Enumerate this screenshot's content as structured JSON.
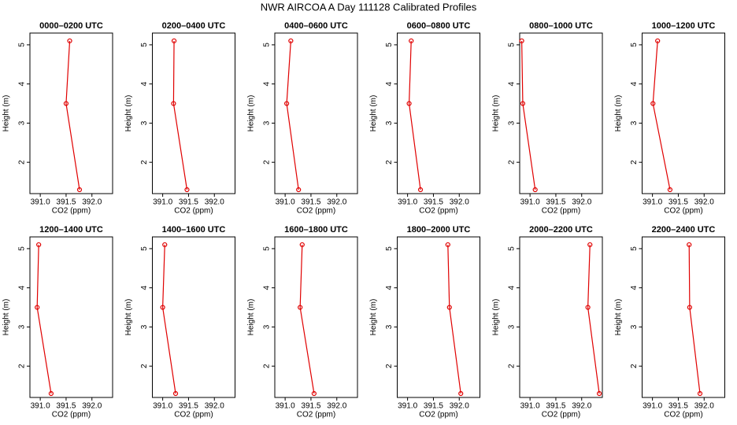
{
  "title": "NWR AIRCOA A  Day 111128  Calibrated Profiles",
  "chart_data": [
    {
      "type": "line",
      "title": "0000–0200 UTC",
      "xlabel": "CO2 (ppm)",
      "ylabel": "Height (m)",
      "color": "#e00000",
      "x": [
        391.57,
        391.5,
        391.76
      ],
      "values": [
        5.1,
        3.5,
        1.3
      ],
      "xlim": [
        390.8,
        392.4
      ],
      "ylim": [
        1.2,
        5.3
      ],
      "xticks": [
        {
          "value": 391,
          "label": "391.0"
        },
        391.5,
        {
          "value": 392,
          "label": "392.0"
        }
      ],
      "yticks": [
        2,
        3,
        4,
        5
      ]
    },
    {
      "type": "line",
      "title": "0200–0400 UTC",
      "xlabel": "CO2 (ppm)",
      "ylabel": "Height (m)",
      "color": "#e00000",
      "x": [
        391.22,
        391.21,
        391.47
      ],
      "values": [
        5.1,
        3.5,
        1.3
      ],
      "xlim": [
        390.8,
        392.4
      ],
      "ylim": [
        1.2,
        5.3
      ],
      "xticks": [
        {
          "value": 391,
          "label": "391.0"
        },
        391.5,
        {
          "value": 392,
          "label": "392.0"
        }
      ],
      "yticks": [
        2,
        3,
        4,
        5
      ]
    },
    {
      "type": "line",
      "title": "0400–0600 UTC",
      "xlabel": "CO2 (ppm)",
      "ylabel": "Height (m)",
      "color": "#e00000",
      "x": [
        391.11,
        391.03,
        391.26
      ],
      "values": [
        5.1,
        3.5,
        1.3
      ],
      "xlim": [
        390.8,
        392.4
      ],
      "ylim": [
        1.2,
        5.3
      ],
      "xticks": [
        {
          "value": 391,
          "label": "391.0"
        },
        391.5,
        {
          "value": 392,
          "label": "392.0"
        }
      ],
      "yticks": [
        2,
        3,
        4,
        5
      ]
    },
    {
      "type": "line",
      "title": "0600–0800 UTC",
      "xlabel": "CO2 (ppm)",
      "ylabel": "Height (m)",
      "color": "#e00000",
      "x": [
        391.07,
        391.03,
        391.25
      ],
      "values": [
        5.1,
        3.5,
        1.3
      ],
      "xlim": [
        390.8,
        392.4
      ],
      "ylim": [
        1.2,
        5.3
      ],
      "xticks": [
        {
          "value": 391,
          "label": "391.0"
        },
        391.5,
        {
          "value": 392,
          "label": "392.0"
        }
      ],
      "yticks": [
        2,
        3,
        4,
        5
      ]
    },
    {
      "type": "line",
      "title": "0800–1000 UTC",
      "xlabel": "CO2 (ppm)",
      "ylabel": "Height (m)",
      "color": "#e00000",
      "x": [
        390.84,
        390.86,
        391.1
      ],
      "values": [
        5.1,
        3.5,
        1.3
      ],
      "xlim": [
        390.8,
        392.4
      ],
      "ylim": [
        1.2,
        5.3
      ],
      "xticks": [
        {
          "value": 391,
          "label": "391.0"
        },
        391.5,
        {
          "value": 392,
          "label": "392.0"
        }
      ],
      "yticks": [
        2,
        3,
        4,
        5
      ]
    },
    {
      "type": "line",
      "title": "1000–1200 UTC",
      "xlabel": "CO2 (ppm)",
      "ylabel": "Height (m)",
      "color": "#e00000",
      "x": [
        391.1,
        391.01,
        391.34
      ],
      "values": [
        5.1,
        3.5,
        1.3
      ],
      "xlim": [
        390.8,
        392.4
      ],
      "ylim": [
        1.2,
        5.3
      ],
      "xticks": [
        {
          "value": 391,
          "label": "391.0"
        },
        391.5,
        {
          "value": 392,
          "label": "392.0"
        }
      ],
      "yticks": [
        2,
        3,
        4,
        5
      ]
    },
    {
      "type": "line",
      "title": "1200–1400 UTC",
      "xlabel": "CO2 (ppm)",
      "ylabel": "Height (m)",
      "color": "#e00000",
      "x": [
        390.97,
        390.94,
        391.21
      ],
      "values": [
        5.1,
        3.5,
        1.3
      ],
      "xlim": [
        390.8,
        392.4
      ],
      "ylim": [
        1.2,
        5.3
      ],
      "xticks": [
        {
          "value": 391,
          "label": "391.0"
        },
        391.5,
        {
          "value": 392,
          "label": "392.0"
        }
      ],
      "yticks": [
        2,
        3,
        4,
        5
      ]
    },
    {
      "type": "line",
      "title": "1400–1600 UTC",
      "xlabel": "CO2 (ppm)",
      "ylabel": "Height (m)",
      "color": "#e00000",
      "x": [
        391.04,
        391.0,
        391.25
      ],
      "values": [
        5.1,
        3.5,
        1.3
      ],
      "xlim": [
        390.8,
        392.4
      ],
      "ylim": [
        1.2,
        5.3
      ],
      "xticks": [
        {
          "value": 391,
          "label": "391.0"
        },
        391.5,
        {
          "value": 392,
          "label": "392.0"
        }
      ],
      "yticks": [
        2,
        3,
        4,
        5
      ]
    },
    {
      "type": "line",
      "title": "1600–1800 UTC",
      "xlabel": "CO2 (ppm)",
      "ylabel": "Height (m)",
      "color": "#e00000",
      "x": [
        391.33,
        391.29,
        391.56
      ],
      "values": [
        5.1,
        3.5,
        1.3
      ],
      "xlim": [
        390.8,
        392.4
      ],
      "ylim": [
        1.2,
        5.3
      ],
      "xticks": [
        {
          "value": 391,
          "label": "391.0"
        },
        391.5,
        {
          "value": 392,
          "label": "392.0"
        }
      ],
      "yticks": [
        2,
        3,
        4,
        5
      ]
    },
    {
      "type": "line",
      "title": "1800–2000 UTC",
      "xlabel": "CO2 (ppm)",
      "ylabel": "Height (m)",
      "color": "#e00000",
      "x": [
        391.78,
        391.81,
        392.03
      ],
      "values": [
        5.1,
        3.5,
        1.3
      ],
      "xlim": [
        390.8,
        392.4
      ],
      "ylim": [
        1.2,
        5.3
      ],
      "xticks": [
        {
          "value": 391,
          "label": "391.0"
        },
        391.5,
        {
          "value": 392,
          "label": "392.0"
        }
      ],
      "yticks": [
        2,
        3,
        4,
        5
      ]
    },
    {
      "type": "line",
      "title": "2000–2200 UTC",
      "xlabel": "CO2 (ppm)",
      "ylabel": "Height (m)",
      "color": "#e00000",
      "x": [
        392.16,
        392.12,
        392.34
      ],
      "values": [
        5.1,
        3.5,
        1.3
      ],
      "xlim": [
        390.8,
        392.4
      ],
      "ylim": [
        1.2,
        5.3
      ],
      "xticks": [
        {
          "value": 391,
          "label": "391.0"
        },
        391.5,
        {
          "value": 392,
          "label": "392.0"
        }
      ],
      "yticks": [
        2,
        3,
        4,
        5
      ]
    },
    {
      "type": "line",
      "title": "2200–2400 UTC",
      "xlabel": "CO2 (ppm)",
      "ylabel": "Height (m)",
      "color": "#e00000",
      "x": [
        391.71,
        391.72,
        391.92
      ],
      "values": [
        5.1,
        3.5,
        1.3
      ],
      "xlim": [
        390.8,
        392.4
      ],
      "ylim": [
        1.2,
        5.3
      ],
      "xticks": [
        {
          "value": 391,
          "label": "391.0"
        },
        391.5,
        {
          "value": 392,
          "label": "392.0"
        }
      ],
      "yticks": [
        2,
        3,
        4,
        5
      ]
    }
  ]
}
